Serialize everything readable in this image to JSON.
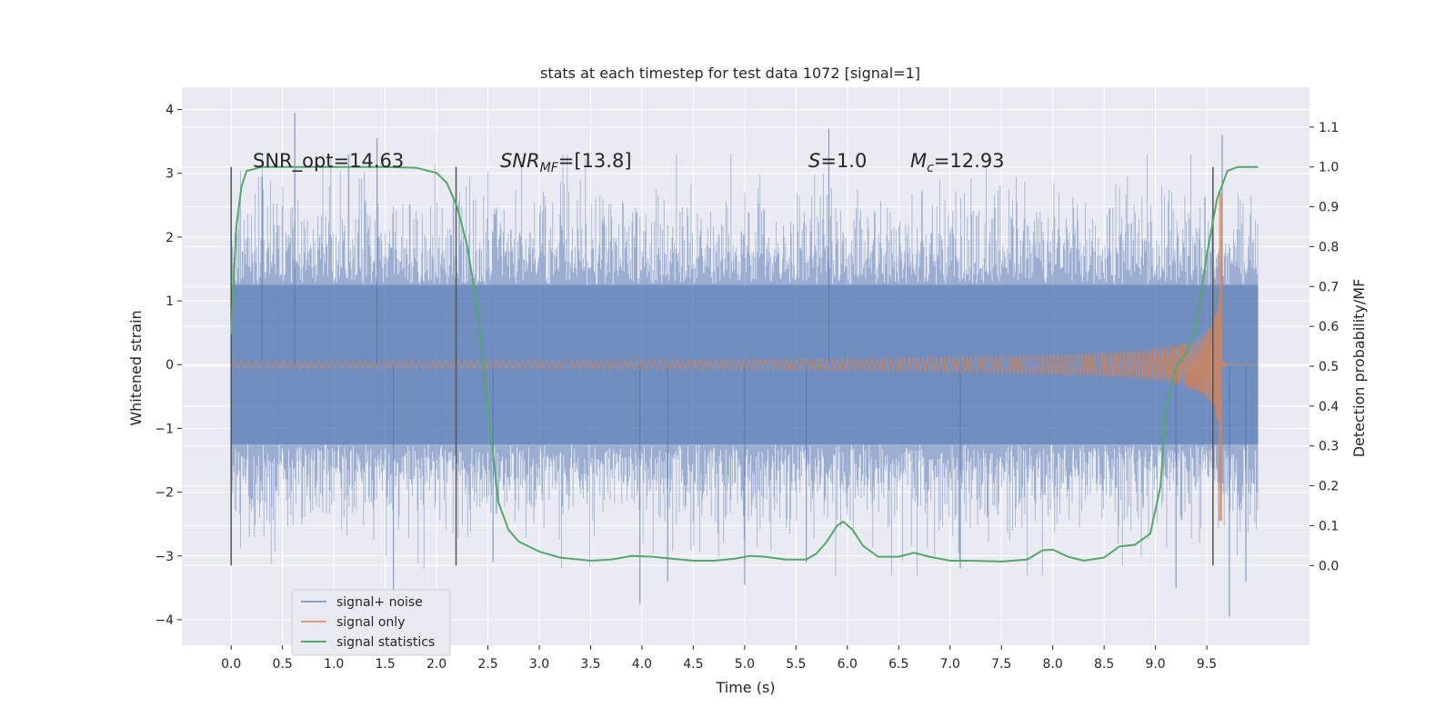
{
  "chart_data": {
    "type": "line",
    "title": "stats at each timestep for test data 1072 [signal=1]",
    "xlabel": "Time (s)",
    "ylabel": "Whitened strain",
    "y2label": "Detection probability/MF",
    "xlim": [
      -0.48,
      10.5
    ],
    "ylim": [
      -4.4,
      4.35
    ],
    "y2lim": [
      -0.2,
      1.2
    ],
    "x_ticks": [
      0.0,
      0.5,
      1.0,
      1.5,
      2.0,
      2.5,
      3.0,
      3.5,
      4.0,
      4.5,
      5.0,
      5.5,
      6.0,
      6.5,
      7.0,
      7.5,
      8.0,
      8.5,
      9.0,
      9.5
    ],
    "x_tick_labels": [
      "0.0",
      "0.5",
      "1.0",
      "1.5",
      "2.0",
      "2.5",
      "3.0",
      "3.5",
      "4.0",
      "4.5",
      "5.0",
      "5.5",
      "6.0",
      "6.5",
      "7.0",
      "7.5",
      "8.0",
      "8.5",
      "9.0",
      "9.5"
    ],
    "y_ticks": [
      4,
      3,
      2,
      1,
      0,
      -1,
      -2,
      -3,
      -4
    ],
    "y_tick_labels": [
      "4",
      "3",
      "2",
      "1",
      "0",
      "−1",
      "−2",
      "−3",
      "−4"
    ],
    "y2_ticks": [
      1.1,
      1.0,
      0.9,
      0.8,
      0.7,
      0.6,
      0.5,
      0.4,
      0.3,
      0.2,
      0.1,
      0.0
    ],
    "y2_tick_labels": [
      "1.1",
      "1.0",
      "0.9",
      "0.8",
      "0.7",
      "0.6",
      "0.5",
      "0.4",
      "0.3",
      "0.2",
      "0.1",
      "0.0"
    ],
    "grid": true,
    "legend_placement": "lower-left",
    "colors": {
      "background": "#eaeaf2",
      "grid": "#ffffff",
      "noise": "#4c72b0",
      "signal": "#dd8452",
      "stats": "#55a868",
      "vline": "#555555"
    },
    "annotations": {
      "snr_opt": "SNR_opt=14.63",
      "snr_mf_italic": "SNR",
      "snr_mf_sub": "MF",
      "snr_mf_rest": "=[13.8]",
      "s_italic": "S",
      "s_rest": "=1.0",
      "mc_italic": "M",
      "mc_sub": "c",
      "mc_rest": "=12.93"
    },
    "vertical_lines_x": [
      0.0,
      2.19,
      9.56
    ],
    "series": [
      {
        "name": "signal+ noise",
        "kind": "noise",
        "t_range": [
          0.0,
          10.0
        ],
        "envelope_y": 1.25,
        "spike_points": [
          [
            0.62,
            3.95
          ],
          [
            1.42,
            3.55
          ],
          [
            0.3,
            2.95
          ],
          [
            1.58,
            -3.55
          ],
          [
            3.98,
            -3.75
          ],
          [
            4.25,
            -3.4
          ],
          [
            5.0,
            -3.45
          ],
          [
            5.82,
            3.7
          ],
          [
            5.6,
            -3.1
          ],
          [
            9.65,
            3.6
          ],
          [
            9.72,
            -3.95
          ],
          [
            9.88,
            -3.4
          ],
          [
            9.2,
            -3.5
          ],
          [
            7.1,
            -3.2
          ],
          [
            2.55,
            -3.1
          ]
        ]
      },
      {
        "name": "signal only",
        "kind": "chirp",
        "t_range": [
          0.0,
          10.0
        ],
        "merger_time": 9.65,
        "peak_amplitude": 2.7,
        "min_amplitude": -2.45
      },
      {
        "name": "signal statistics",
        "kind": "curve",
        "axis": "y2",
        "points": [
          [
            0.0,
            0.58
          ],
          [
            0.05,
            0.85
          ],
          [
            0.1,
            0.95
          ],
          [
            0.15,
            0.99
          ],
          [
            0.3,
            1.0
          ],
          [
            1.0,
            1.0
          ],
          [
            1.5,
            1.0
          ],
          [
            1.8,
            0.998
          ],
          [
            2.0,
            0.985
          ],
          [
            2.1,
            0.96
          ],
          [
            2.2,
            0.9
          ],
          [
            2.3,
            0.8
          ],
          [
            2.4,
            0.64
          ],
          [
            2.48,
            0.45
          ],
          [
            2.55,
            0.28
          ],
          [
            2.6,
            0.16
          ],
          [
            2.7,
            0.09
          ],
          [
            2.8,
            0.06
          ],
          [
            3.0,
            0.035
          ],
          [
            3.2,
            0.02
          ],
          [
            3.5,
            0.012
          ],
          [
            3.7,
            0.015
          ],
          [
            3.9,
            0.024
          ],
          [
            4.1,
            0.022
          ],
          [
            4.3,
            0.017
          ],
          [
            4.5,
            0.012
          ],
          [
            4.7,
            0.012
          ],
          [
            4.9,
            0.017
          ],
          [
            5.05,
            0.024
          ],
          [
            5.2,
            0.022
          ],
          [
            5.4,
            0.015
          ],
          [
            5.6,
            0.015
          ],
          [
            5.7,
            0.03
          ],
          [
            5.8,
            0.06
          ],
          [
            5.9,
            0.1
          ],
          [
            5.96,
            0.11
          ],
          [
            6.05,
            0.09
          ],
          [
            6.15,
            0.05
          ],
          [
            6.3,
            0.022
          ],
          [
            6.5,
            0.022
          ],
          [
            6.65,
            0.032
          ],
          [
            6.8,
            0.022
          ],
          [
            7.0,
            0.012
          ],
          [
            7.2,
            0.012
          ],
          [
            7.5,
            0.01
          ],
          [
            7.75,
            0.015
          ],
          [
            7.9,
            0.038
          ],
          [
            8.0,
            0.04
          ],
          [
            8.15,
            0.022
          ],
          [
            8.3,
            0.012
          ],
          [
            8.5,
            0.02
          ],
          [
            8.65,
            0.048
          ],
          [
            8.8,
            0.052
          ],
          [
            8.95,
            0.08
          ],
          [
            9.05,
            0.2
          ],
          [
            9.1,
            0.39
          ],
          [
            9.2,
            0.5
          ],
          [
            9.3,
            0.53
          ],
          [
            9.4,
            0.6
          ],
          [
            9.5,
            0.78
          ],
          [
            9.6,
            0.92
          ],
          [
            9.7,
            0.99
          ],
          [
            9.8,
            1.0
          ],
          [
            10.0,
            1.0
          ]
        ]
      }
    ]
  }
}
